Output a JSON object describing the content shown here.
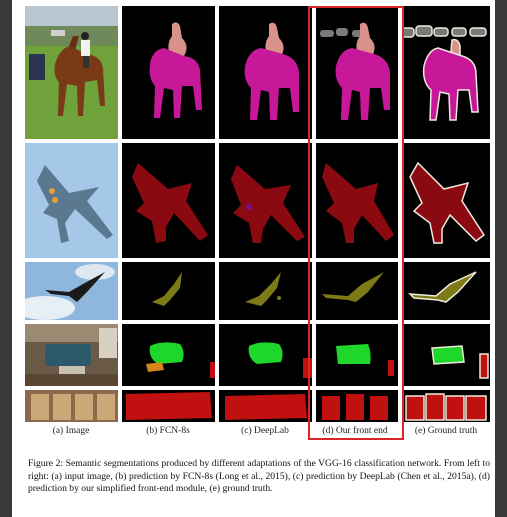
{
  "figure": {
    "column_labels": [
      "(a) Image",
      "(b) FCN-8s",
      "(c) DeepLab",
      "(d) Our front end",
      "(e) Ground truth"
    ],
    "highlighted_column": "(d) Our front end",
    "highlight_color": "#d8262a",
    "row_contents": [
      "horse and rider",
      "fighter jet",
      "bird in flight",
      "living room with sofa",
      "row of chairs"
    ],
    "class_colors": {
      "horse": "#c8189a",
      "person": "#d9928a",
      "aeroplane": "#8b0a12",
      "bird": "#7e7a18",
      "sofa": "#1fd62a",
      "chair": "#c01010",
      "table": "#d4851a",
      "car": "#7a7a7a",
      "boundary": "#f0eadc"
    }
  },
  "caption": "Figure 2: Semantic segmentations produced by different adaptations of the VGG-16 classification network. From left to right: (a) input image, (b) prediction by FCN-8s (Long et al., 2015), (c) prediction by DeepLab (Chen et al., 2015a), (d) prediction by our simplified front-end module, (e) ground truth."
}
